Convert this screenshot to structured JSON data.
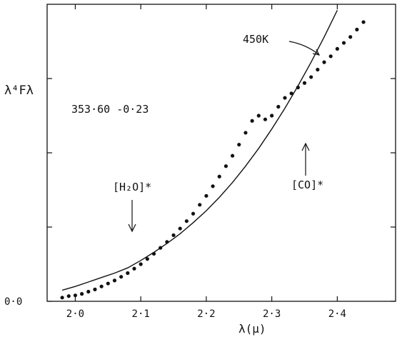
{
  "chart_data": {
    "type": "scatter",
    "title": "",
    "xlabel": "λ(μ)",
    "ylabel": "λ⁴Fλ",
    "xlim": [
      1.957,
      2.489
    ],
    "ylim": [
      0.0,
      4.0
    ],
    "x_ticks": [
      2.0,
      2.1,
      2.2,
      2.3,
      2.4
    ],
    "x_tick_labels": [
      "2·0",
      "2·1",
      "2·2",
      "2·3",
      "2·4"
    ],
    "y_tick_labels": [
      {
        "value": 0.0,
        "label": "0·0"
      }
    ],
    "y_unlabeled_ticks": [
      1.0,
      2.0,
      3.0
    ],
    "series": [
      {
        "name": "450K",
        "style": "line",
        "x": [
          1.98,
          2.0,
          2.02,
          2.04,
          2.06,
          2.08,
          2.1,
          2.12,
          2.14,
          2.16,
          2.18,
          2.2,
          2.22,
          2.24,
          2.26,
          2.28,
          2.3,
          2.32,
          2.34,
          2.36,
          2.38,
          2.4
        ],
        "y": [
          0.15,
          0.2,
          0.26,
          0.32,
          0.38,
          0.45,
          0.55,
          0.66,
          0.78,
          0.91,
          1.06,
          1.22,
          1.4,
          1.6,
          1.82,
          2.06,
          2.32,
          2.6,
          2.9,
          3.22,
          3.56,
          3.92
        ]
      },
      {
        "style": "dots",
        "x": [
          1.98,
          1.99,
          2.0,
          2.01,
          2.02,
          2.03,
          2.04,
          2.05,
          2.06,
          2.07,
          2.08,
          2.09,
          2.1,
          2.11,
          2.12,
          2.13,
          2.14,
          2.15,
          2.16,
          2.17,
          2.18,
          2.19,
          2.2,
          2.21,
          2.22,
          2.23,
          2.24,
          2.25,
          2.26,
          2.27,
          2.28,
          2.29,
          2.3,
          2.31,
          2.32,
          2.33,
          2.34,
          2.35,
          2.36,
          2.37,
          2.38,
          2.39,
          2.4,
          2.41,
          2.42,
          2.43,
          2.44
        ],
        "y": [
          0.05,
          0.07,
          0.08,
          0.1,
          0.13,
          0.16,
          0.2,
          0.24,
          0.28,
          0.33,
          0.38,
          0.44,
          0.5,
          0.57,
          0.64,
          0.72,
          0.8,
          0.89,
          0.98,
          1.08,
          1.18,
          1.3,
          1.42,
          1.55,
          1.68,
          1.82,
          1.96,
          2.11,
          2.27,
          2.43,
          2.5,
          2.45,
          2.5,
          2.62,
          2.74,
          2.8,
          2.88,
          2.94,
          3.02,
          3.12,
          3.22,
          3.3,
          3.4,
          3.48,
          3.56,
          3.66,
          3.76
        ]
      }
    ],
    "annotations": {
      "line_label": "450K",
      "source": "353·60  -0·23",
      "h2o": "[H₂O]*",
      "co": "[CO]*"
    },
    "grid": false,
    "legend": "none"
  }
}
